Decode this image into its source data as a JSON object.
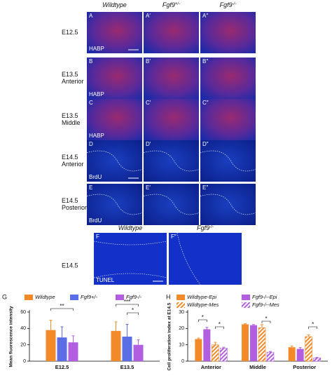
{
  "headers": [
    {
      "text": "Wildtype"
    },
    {
      "text": "Fgf9",
      "sup": "+/-"
    },
    {
      "text": "Fgf9",
      "sup": "-/-"
    }
  ],
  "rows": [
    {
      "label": [
        "E12.5"
      ],
      "letters": [
        "A",
        "A′",
        "A″"
      ],
      "stain": "HABP"
    },
    {
      "label": [
        "E13.5",
        "Anterior"
      ],
      "letters": [
        "B",
        "B′",
        "B″"
      ],
      "stain": "HABP"
    },
    {
      "label": [
        "E13.5",
        "Middle"
      ],
      "letters": [
        "C",
        "C′",
        "C″"
      ],
      "stain": "HABP"
    },
    {
      "label": [
        "E14.5",
        "Anterior"
      ],
      "letters": [
        "D",
        "D′",
        "D″"
      ],
      "stain": "BrdU"
    },
    {
      "label": [
        "E14.5",
        "Posterior"
      ],
      "letters": [
        "E",
        "E′",
        "E″"
      ],
      "stain": "BrdU"
    }
  ],
  "tunel": {
    "label": "E14.5",
    "headers": [
      {
        "text": "Wildtype"
      },
      {
        "text": "Fgf9",
        "sup": "-/-"
      }
    ],
    "letters": [
      "F",
      "F″"
    ],
    "stain": "TUNEL"
  },
  "chart_data": [
    {
      "type": "bar",
      "panel": "G",
      "ylabel": "Mean fluorescence intensity",
      "categories": [
        "E12.5",
        "E13.5"
      ],
      "ylim": [
        0,
        60
      ],
      "yticks": [
        0,
        20,
        40,
        60
      ],
      "series": [
        {
          "name": "Wildtype",
          "color": "#f28a2a",
          "values": [
            38,
            37
          ],
          "errors": [
            12,
            11
          ]
        },
        {
          "name": "Fgf9+/-",
          "color": "#5b6ee6",
          "values": [
            29,
            30
          ],
          "errors": [
            13,
            15
          ]
        },
        {
          "name": "Fgf9-/-",
          "color": "#b15fe0",
          "values": [
            23,
            20
          ],
          "errors": [
            8,
            6
          ]
        }
      ],
      "annotations": [
        "**",
        "***",
        "*"
      ]
    },
    {
      "type": "bar",
      "panel": "H",
      "ylabel": "Cell proliferation index at E14.5",
      "categories": [
        "Anterior",
        "Middle",
        "Posterior"
      ],
      "ylim": [
        0,
        30
      ],
      "yticks": [
        0,
        10,
        20,
        30
      ],
      "series": [
        {
          "name": "Wildtype-Epi",
          "color": "#f28a2a",
          "pattern": "solid",
          "values": [
            13.5,
            22.5,
            8.5
          ],
          "errors": [
            0.6,
            0.4,
            0.8
          ]
        },
        {
          "name": "Fgf9-/--Epi",
          "color": "#b15fe0",
          "pattern": "solid",
          "values": [
            19.5,
            22,
            7.5
          ],
          "errors": [
            1.2,
            0.4,
            0.8
          ]
        },
        {
          "name": "Wildtype-Mes",
          "color": "#f28a2a",
          "pattern": "hatched",
          "values": [
            10,
            20.5,
            15
          ],
          "errors": [
            1.5,
            1.8,
            1
          ]
        },
        {
          "name": "Fgf9-/--Mes",
          "color": "#b15fe0",
          "pattern": "hatched",
          "values": [
            8,
            5.5,
            2
          ],
          "errors": [
            0.5,
            0.4,
            0.3
          ]
        }
      ],
      "annotations": [
        "*",
        "*",
        "*",
        "*"
      ]
    }
  ]
}
